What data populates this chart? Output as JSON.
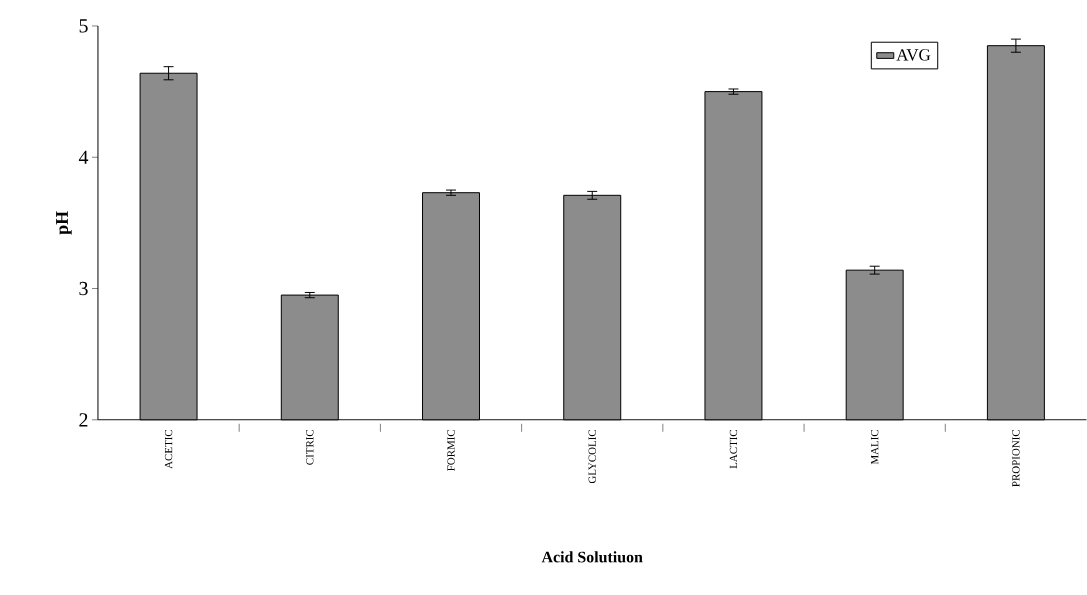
{
  "chart_data": {
    "type": "bar",
    "xlabel": "Acid Solutiuon",
    "ylabel": "pH",
    "categories": [
      "ACETIC",
      "CITRIC",
      "FORMIC",
      "GLYCOLIC",
      "LACTIC",
      "MALIC",
      "PROPIONIC"
    ],
    "series": [
      {
        "name": "AVG",
        "color": "#8c8c8c",
        "values": [
          4.64,
          2.95,
          3.73,
          3.71,
          4.5,
          3.14,
          4.85
        ],
        "errors": [
          0.05,
          0.02,
          0.02,
          0.03,
          0.02,
          0.03,
          0.05
        ]
      }
    ],
    "ylim": [
      2,
      5
    ],
    "yticks": [
      2,
      3,
      4,
      5
    ],
    "legend": "top right",
    "grid": false
  }
}
